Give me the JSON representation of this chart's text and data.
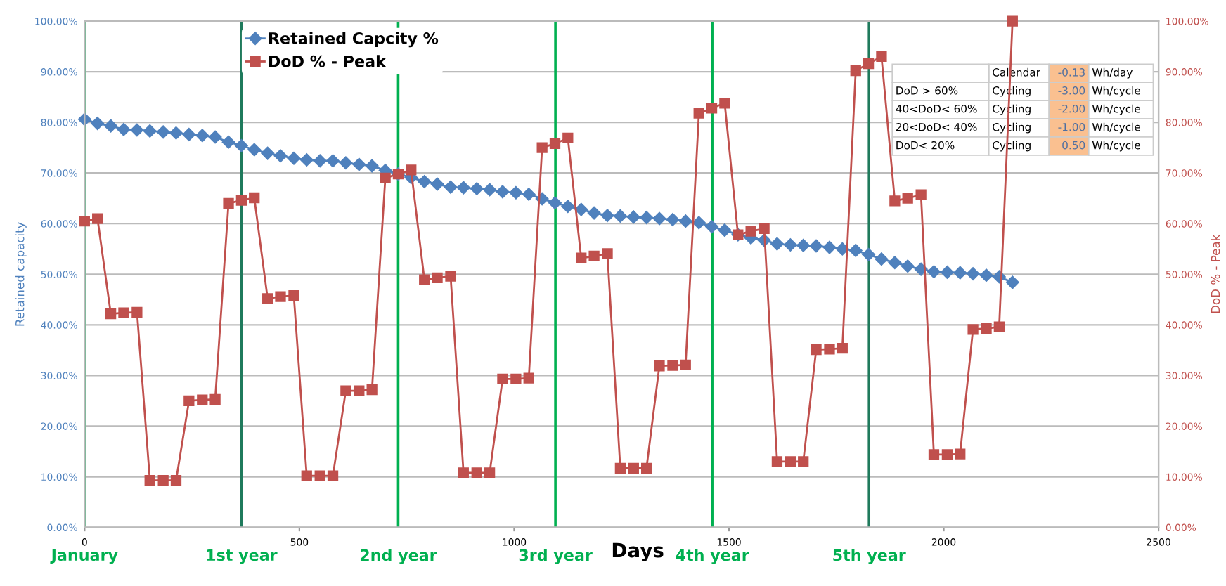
{
  "chart_data": {
    "type": "line",
    "xlabel": "Days",
    "ylabel": "Retained capacity",
    "y2label": "DoD % - Peak",
    "x": [
      0,
      30,
      61,
      91,
      122,
      152,
      183,
      213,
      243,
      274,
      304,
      335,
      365,
      395,
      426,
      456,
      487,
      517,
      548,
      578,
      608,
      639,
      669,
      700,
      730,
      760,
      791,
      821,
      852,
      882,
      913,
      943,
      973,
      1004,
      1034,
      1065,
      1095,
      1125,
      1156,
      1186,
      1217,
      1247,
      1278,
      1308,
      1338,
      1369,
      1399,
      1430,
      1460,
      1490,
      1521,
      1551,
      1582,
      1612,
      1643,
      1673,
      1703,
      1734,
      1764,
      1795,
      1825,
      1855,
      1886,
      1916,
      1947,
      1977,
      2008,
      2038,
      2068,
      2099,
      2129,
      2160
    ],
    "series": [
      {
        "name": "Retained Capcity %",
        "color": "#4f81bd",
        "marker": "diamond",
        "values": [
          80.6,
          79.8,
          79.3,
          78.6,
          78.5,
          78.3,
          78.1,
          77.9,
          77.6,
          77.4,
          77.1,
          76.1,
          75.4,
          74.6,
          73.9,
          73.4,
          72.9,
          72.6,
          72.4,
          72.4,
          72.0,
          71.7,
          71.4,
          70.5,
          69.8,
          69.1,
          68.3,
          67.8,
          67.2,
          67.1,
          66.9,
          66.7,
          66.3,
          66.1,
          65.8,
          64.9,
          64.1,
          63.4,
          62.8,
          62.1,
          61.6,
          61.5,
          61.3,
          61.2,
          61.0,
          60.8,
          60.5,
          60.2,
          59.4,
          58.7,
          57.8,
          57.2,
          56.7,
          56.0,
          55.8,
          55.7,
          55.6,
          55.3,
          55.0,
          54.7,
          53.9,
          53.0,
          52.3,
          51.6,
          51.0,
          50.5,
          50.4,
          50.3,
          50.1,
          49.8,
          49.5,
          48.4
        ]
      },
      {
        "name": "DoD % - Peak",
        "color": "#c0504d",
        "marker": "square",
        "axis": "y2",
        "values": [
          60.5,
          61.0,
          42.2,
          42.4,
          42.5,
          9.3,
          9.3,
          9.3,
          25.0,
          25.2,
          25.3,
          64.0,
          64.6,
          65.1,
          45.2,
          45.6,
          45.8,
          10.2,
          10.2,
          10.2,
          27.0,
          27.0,
          27.2,
          69.0,
          69.8,
          70.6,
          48.9,
          49.3,
          49.6,
          10.8,
          10.8,
          10.8,
          29.3,
          29.3,
          29.5,
          75.0,
          75.8,
          76.9,
          53.2,
          53.6,
          54.1,
          11.7,
          11.7,
          11.7,
          31.9,
          32.0,
          32.1,
          81.8,
          82.8,
          83.8,
          57.8,
          58.5,
          59.0,
          13.0,
          13.0,
          13.0,
          35.1,
          35.2,
          35.4,
          90.2,
          91.6,
          93.0,
          64.5,
          65.0,
          65.7,
          14.4,
          14.4,
          14.5,
          39.1,
          39.3,
          39.6,
          100
        ]
      }
    ],
    "xlim": [
      0,
      2500
    ],
    "xticks": [
      0,
      500,
      1000,
      1500,
      2000,
      2500
    ],
    "ylim": [
      0,
      100
    ],
    "yticks": [
      {
        "value": 0,
        "label": "0.00%"
      },
      {
        "value": 10,
        "label": "10.00%"
      },
      {
        "value": 20,
        "label": "20.00%"
      },
      {
        "value": 30,
        "label": "30.00%"
      },
      {
        "value": 40,
        "label": "40.00%"
      },
      {
        "value": 50,
        "label": "50.00%"
      },
      {
        "value": 60,
        "label": "60.00%"
      },
      {
        "value": 70,
        "label": "70.00%"
      },
      {
        "value": 80,
        "label": "80.00%"
      },
      {
        "value": 90,
        "label": "90.00%"
      },
      {
        "value": 100,
        "label": "100.00%"
      }
    ],
    "y2lim": [
      0,
      100
    ],
    "y2ticks": [
      {
        "value": 0,
        "label": "0.00%"
      },
      {
        "value": 10,
        "label": "10.00%"
      },
      {
        "value": 20,
        "label": "20.00%"
      },
      {
        "value": 30,
        "label": "30.00%"
      },
      {
        "value": 40,
        "label": "40.00%"
      },
      {
        "value": 50,
        "label": "50.00%"
      },
      {
        "value": 60,
        "label": "60.00%"
      },
      {
        "value": 70,
        "label": "70.00%"
      },
      {
        "value": 80,
        "label": "80.00%"
      },
      {
        "value": 90,
        "label": "90.00%"
      },
      {
        "value": 100,
        "label": "100.00%"
      }
    ],
    "ref_lines": [
      {
        "axis": "x",
        "value": 0,
        "label": "January",
        "color": "#00b050"
      },
      {
        "axis": "x",
        "value": 365,
        "label": "1st year",
        "color": "#1f7a5c"
      },
      {
        "axis": "x",
        "value": 730,
        "label": "2nd year",
        "color": "#00b050"
      },
      {
        "axis": "x",
        "value": 1096,
        "label": "3rd year",
        "color": "#00b050"
      },
      {
        "axis": "x",
        "value": 1461,
        "label": "4th year",
        "color": "#00b050"
      },
      {
        "axis": "x",
        "value": 1826,
        "label": "5th year",
        "color": "#1f7a5c"
      }
    ],
    "annotations": [
      "Calendar",
      "-0.13",
      "Wh/day",
      "DoD > 60%",
      "Cycling",
      "-3.00",
      "Wh/cycle",
      "40<DoD< 60%",
      "Cycling",
      "-2.00",
      "Wh/cycle",
      "20<DoD< 40%",
      "Cycling",
      "-1.00",
      "Wh/cycle",
      "DoD< 20%",
      "Cycling",
      "0.50",
      "Wh/cycle"
    ],
    "grid": "y",
    "legend": "top left",
    "line_style": "solid"
  }
}
